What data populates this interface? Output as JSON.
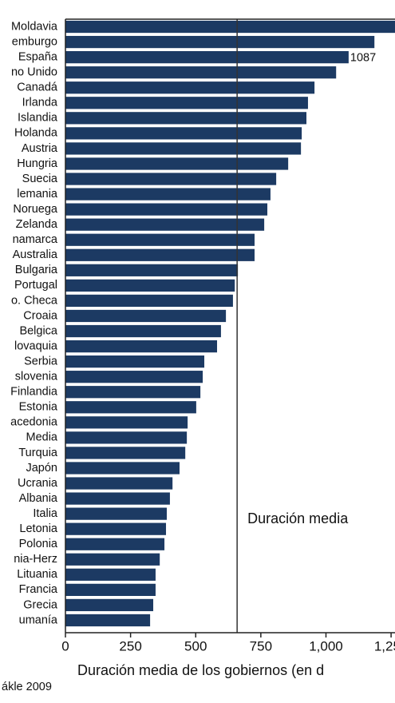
{
  "chart_data": {
    "type": "barh",
    "categories": [
      "Moldavia",
      "emburgo",
      "España",
      "no Unido",
      "Canadá",
      "Irlanda",
      "Islandia",
      "Holanda",
      "Austria",
      "Hungria",
      "Suecia",
      "lemania",
      "Noruega",
      "Zelanda",
      "namarca",
      "Australia",
      "Bulgaria",
      "Portugal",
      "o. Checa",
      "Croaia",
      "Belgica",
      "lovaquia",
      "Serbia",
      "slovenia",
      "Finlandia",
      "Estonia",
      "acedonia",
      "Media",
      "Turquia",
      "Japón",
      "Ucrania",
      "Albania",
      "Italia",
      "Letonia",
      "Polonia",
      "nia-Herz",
      "Lituania",
      "Francia",
      "Grecia",
      "umanía"
    ],
    "values": [
      1300,
      1186,
      1087,
      1039,
      956,
      931,
      925,
      907,
      904,
      855,
      809,
      787,
      775,
      763,
      726,
      726,
      662,
      650,
      643,
      616,
      597,
      582,
      533,
      527,
      518,
      502,
      469,
      466,
      460,
      438,
      411,
      401,
      389,
      386,
      380,
      362,
      346,
      346,
      337,
      325
    ],
    "value_labels": [
      null,
      null,
      "1087",
      null,
      null,
      null,
      null,
      null,
      null,
      null,
      null,
      null,
      null,
      null,
      null,
      null,
      null,
      null,
      null,
      null,
      null,
      null,
      null,
      null,
      null,
      null,
      null,
      null,
      null,
      null,
      null,
      null,
      null,
      null,
      null,
      null,
      null,
      null,
      null,
      null
    ],
    "color": "#1c3a63",
    "xlim": [
      0,
      1265
    ],
    "xticks": [
      0,
      250,
      500,
      750,
      {
        "value": 1000,
        "label": "1,000"
      },
      {
        "value": 1250,
        "label": "1,250"
      }
    ],
    "reference_line": {
      "value": 659,
      "label": "Duración media"
    },
    "xlabel": "Duración media de los gobiernos (en d",
    "source": "ákle 2009"
  }
}
